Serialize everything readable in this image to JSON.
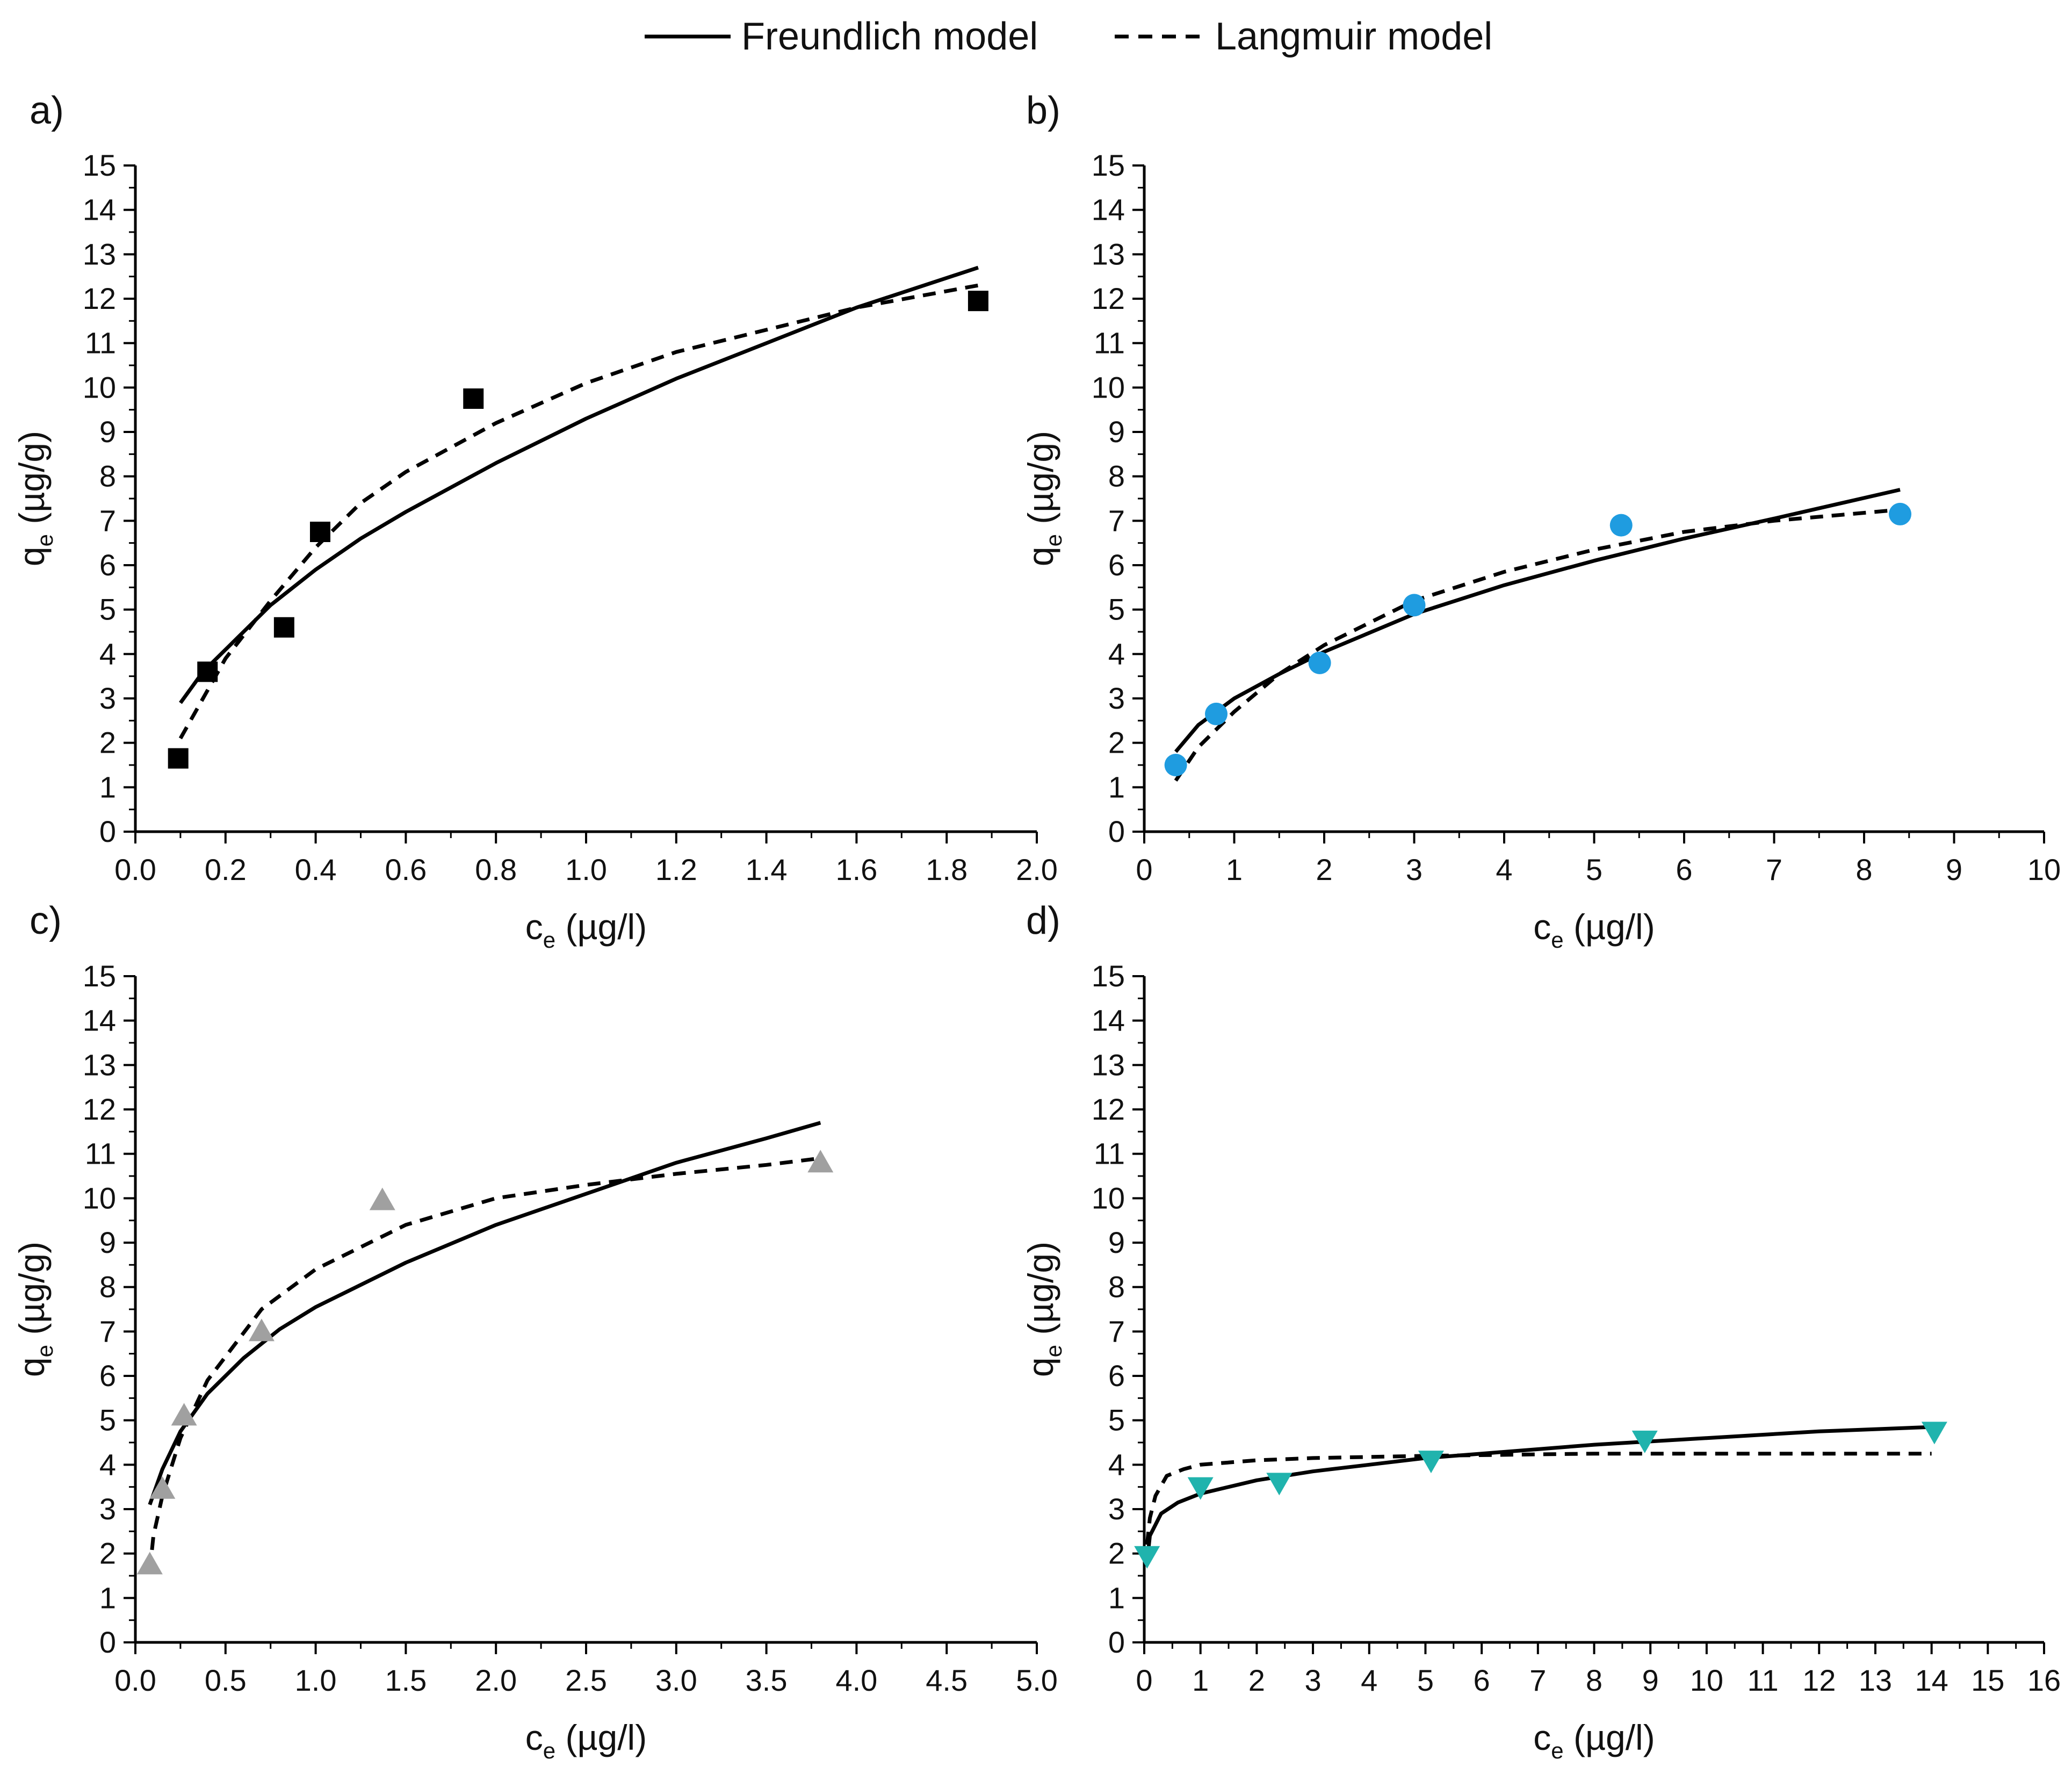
{
  "legend": {
    "entries": [
      {
        "label": "Freundlich model",
        "style": "solid"
      },
      {
        "label": "Langmuir model",
        "style": "dashed"
      }
    ]
  },
  "chart_data": [
    {
      "panel": "a)",
      "type": "scatter",
      "xlabel_main": "c",
      "xlabel_sub": "e",
      "xlabel_unit": "(µg/l)",
      "ylabel_main": "q",
      "ylabel_sub": "e",
      "ylabel_unit": "(µg/g)",
      "xlim": [
        0,
        2.0
      ],
      "xticks": [
        0,
        0.2,
        0.4,
        0.6,
        0.8,
        1.0,
        1.2,
        1.4,
        1.6,
        1.8,
        2.0
      ],
      "xdecimals": 1,
      "ylim": [
        0,
        15
      ],
      "yticks": [
        0,
        1,
        2,
        3,
        4,
        5,
        6,
        7,
        8,
        9,
        10,
        11,
        12,
        13,
        14,
        15
      ],
      "marker": "square",
      "marker_color": "#000000",
      "points": [
        [
          0.095,
          1.65
        ],
        [
          0.16,
          3.6
        ],
        [
          0.33,
          4.6
        ],
        [
          0.41,
          6.75
        ],
        [
          0.75,
          9.75
        ],
        [
          1.87,
          11.95
        ]
      ],
      "freundlich": {
        "x": [
          0.1,
          0.15,
          0.2,
          0.3,
          0.4,
          0.5,
          0.6,
          0.8,
          1.0,
          1.2,
          1.4,
          1.6,
          1.87
        ],
        "y": [
          2.9,
          3.6,
          4.1,
          5.1,
          5.9,
          6.6,
          7.2,
          8.3,
          9.3,
          10.2,
          11.0,
          11.8,
          12.7
        ]
      },
      "langmuir": {
        "x": [
          0.1,
          0.15,
          0.2,
          0.3,
          0.4,
          0.5,
          0.6,
          0.8,
          1.0,
          1.2,
          1.4,
          1.6,
          1.87
        ],
        "y": [
          2.1,
          3.0,
          3.9,
          5.2,
          6.4,
          7.4,
          8.1,
          9.2,
          10.1,
          10.8,
          11.3,
          11.8,
          12.3
        ]
      }
    },
    {
      "panel": "b)",
      "type": "scatter",
      "xlabel_main": "c",
      "xlabel_sub": "e",
      "xlabel_unit": "(µg/l)",
      "ylabel_main": "q",
      "ylabel_sub": "e",
      "ylabel_unit": "(µg/g)",
      "xlim": [
        0,
        10
      ],
      "xticks": [
        0,
        1,
        2,
        3,
        4,
        5,
        6,
        7,
        8,
        9,
        10
      ],
      "xdecimals": 0,
      "ylim": [
        0,
        15
      ],
      "yticks": [
        0,
        1,
        2,
        3,
        4,
        5,
        6,
        7,
        8,
        9,
        10,
        11,
        12,
        13,
        14,
        15
      ],
      "marker": "circle",
      "marker_color": "#1f9ce0",
      "points": [
        [
          0.35,
          1.5
        ],
        [
          0.8,
          2.65
        ],
        [
          1.95,
          3.8
        ],
        [
          3.0,
          5.1
        ],
        [
          5.3,
          6.9
        ],
        [
          8.4,
          7.15
        ]
      ],
      "freundlich": {
        "x": [
          0.35,
          0.6,
          1.0,
          1.5,
          2.0,
          3.0,
          4.0,
          5.0,
          6.0,
          7.0,
          8.4
        ],
        "y": [
          1.8,
          2.4,
          3.0,
          3.55,
          4.05,
          4.9,
          5.55,
          6.1,
          6.6,
          7.05,
          7.7
        ]
      },
      "langmuir": {
        "x": [
          0.35,
          0.6,
          1.0,
          1.5,
          2.0,
          3.0,
          4.0,
          5.0,
          6.0,
          7.0,
          8.4
        ],
        "y": [
          1.15,
          1.9,
          2.7,
          3.55,
          4.2,
          5.2,
          5.85,
          6.35,
          6.75,
          7.0,
          7.25
        ]
      }
    },
    {
      "panel": "c)",
      "type": "scatter",
      "xlabel_main": "c",
      "xlabel_sub": "e",
      "xlabel_unit": "(µg/l)",
      "ylabel_main": "q",
      "ylabel_sub": "e",
      "ylabel_unit": "(µg/g)",
      "xlim": [
        0,
        5.0
      ],
      "xticks": [
        0,
        0.5,
        1.0,
        1.5,
        2.0,
        2.5,
        3.0,
        3.5,
        4.0,
        4.5,
        5.0
      ],
      "xdecimals": 1,
      "ylim": [
        0,
        15
      ],
      "yticks": [
        0,
        1,
        2,
        3,
        4,
        5,
        6,
        7,
        8,
        9,
        10,
        11,
        12,
        13,
        14,
        15
      ],
      "marker": "triangle-up",
      "marker_color": "#a0a0a0",
      "points": [
        [
          0.08,
          1.75
        ],
        [
          0.15,
          3.45
        ],
        [
          0.27,
          5.1
        ],
        [
          0.7,
          7.0
        ],
        [
          1.37,
          9.95
        ],
        [
          3.8,
          10.8
        ]
      ],
      "freundlich": {
        "x": [
          0.08,
          0.15,
          0.25,
          0.4,
          0.6,
          0.8,
          1.0,
          1.5,
          2.0,
          2.5,
          3.0,
          3.5,
          3.8
        ],
        "y": [
          3.1,
          3.9,
          4.75,
          5.6,
          6.4,
          7.05,
          7.55,
          8.55,
          9.4,
          10.1,
          10.8,
          11.35,
          11.7
        ]
      },
      "langmuir": {
        "x": [
          0.08,
          0.1,
          0.15,
          0.25,
          0.4,
          0.7,
          1.0,
          1.5,
          2.0,
          2.5,
          3.0,
          3.5,
          3.8
        ],
        "y": [
          1.6,
          2.4,
          3.3,
          4.6,
          5.9,
          7.5,
          8.4,
          9.4,
          10.0,
          10.3,
          10.55,
          10.75,
          10.9
        ]
      }
    },
    {
      "panel": "d)",
      "type": "scatter",
      "xlabel_main": "c",
      "xlabel_sub": "e",
      "xlabel_unit": "(µg/l)",
      "ylabel_main": "q",
      "ylabel_sub": "e",
      "ylabel_unit": "(µg/g)",
      "xlim": [
        0,
        16
      ],
      "xticks": [
        0,
        1,
        2,
        3,
        4,
        5,
        6,
        7,
        8,
        9,
        10,
        11,
        12,
        13,
        14,
        15,
        16
      ],
      "xdecimals": 0,
      "ylim": [
        0,
        15
      ],
      "yticks": [
        0,
        1,
        2,
        3,
        4,
        5,
        6,
        7,
        8,
        9,
        10,
        11,
        12,
        13,
        14,
        15
      ],
      "marker": "triangle-down",
      "marker_color": "#20b3ad",
      "points": [
        [
          0.05,
          1.95
        ],
        [
          1.0,
          3.5
        ],
        [
          2.4,
          3.6
        ],
        [
          5.1,
          4.1
        ],
        [
          8.9,
          4.55
        ],
        [
          14.05,
          4.75
        ]
      ],
      "freundlich": {
        "x": [
          0.05,
          0.1,
          0.3,
          0.6,
          1.0,
          2.0,
          3.0,
          4.0,
          5.0,
          6.0,
          8.0,
          10.0,
          12.0,
          14.0
        ],
        "y": [
          1.8,
          2.4,
          2.9,
          3.15,
          3.35,
          3.65,
          3.85,
          4.0,
          4.15,
          4.25,
          4.45,
          4.6,
          4.75,
          4.85
        ]
      },
      "langmuir": {
        "x": [
          0.05,
          0.1,
          0.2,
          0.4,
          0.7,
          1.0,
          2.0,
          3.0,
          5.0,
          8.0,
          11.0,
          14.0
        ],
        "y": [
          2.2,
          2.8,
          3.3,
          3.75,
          3.9,
          4.0,
          4.1,
          4.15,
          4.2,
          4.25,
          4.25,
          4.25
        ]
      }
    }
  ]
}
